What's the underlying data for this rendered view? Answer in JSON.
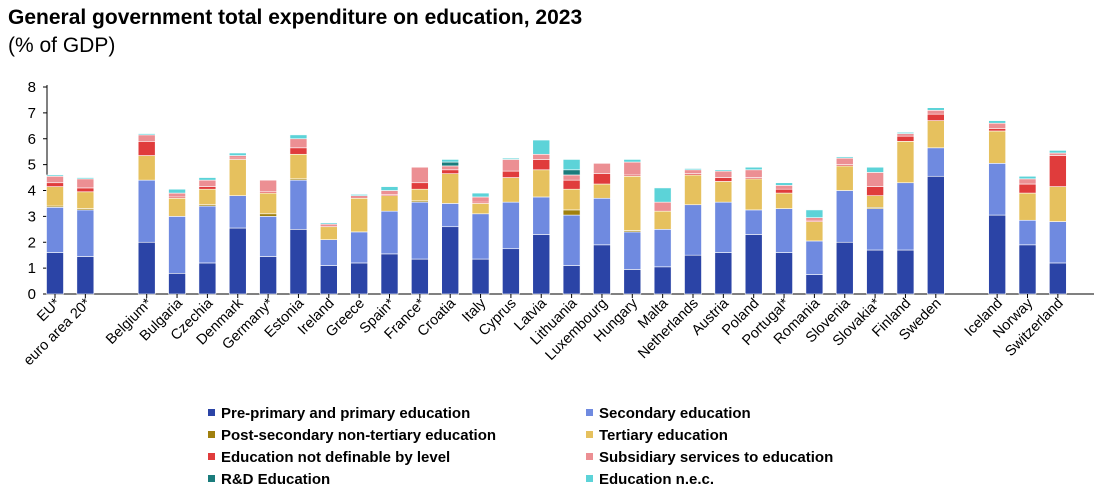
{
  "title": "General government total expenditure on education, 2023",
  "subtitle": "(% of GDP)",
  "chart_data": {
    "type": "bar",
    "stacked": true,
    "ylim": [
      0,
      8
    ],
    "yticks": [
      "0",
      "1",
      "2",
      "3",
      "4",
      "5",
      "6",
      "7",
      "8"
    ],
    "grid": false,
    "legend_position": "bottom",
    "categories": [
      "EU*",
      "euro area 20*",
      "Belgium*",
      "Bulgaria",
      "Czechia",
      "Denmark",
      "Germany*",
      "Estonia",
      "Ireland",
      "Greece",
      "Spain*",
      "France*",
      "Croatia",
      "Italy",
      "Cyprus",
      "Latvia",
      "Lithuania",
      "Luxembourg",
      "Hungary",
      "Malta",
      "Netherlands",
      "Austria",
      "Poland",
      "Portugal*",
      "Romania",
      "Slovenia",
      "Slovakia*",
      "Finland",
      "Sweden",
      "Iceland",
      "Norway",
      "Switzerland"
    ],
    "groups": [
      [
        0,
        1
      ],
      [
        2,
        28
      ],
      [
        29,
        31
      ]
    ],
    "series": [
      {
        "name": "Pre-primary and primary education",
        "color": "#2b44a6",
        "values": [
          1.6,
          1.45,
          2.0,
          0.8,
          1.2,
          2.55,
          1.45,
          2.5,
          1.1,
          1.2,
          1.55,
          1.35,
          2.6,
          1.35,
          1.75,
          2.3,
          1.1,
          1.9,
          0.95,
          1.05,
          1.5,
          1.6,
          2.3,
          1.6,
          0.75,
          2.0,
          1.7,
          1.7,
          4.55,
          3.05,
          1.9,
          1.2
        ]
      },
      {
        "name": "Secondary education",
        "color": "#6f8ae0",
        "values": [
          1.75,
          1.8,
          2.4,
          2.2,
          2.2,
          1.25,
          1.55,
          1.9,
          1.0,
          1.2,
          1.65,
          2.2,
          0.9,
          1.75,
          1.8,
          1.45,
          1.95,
          1.8,
          1.45,
          1.45,
          1.95,
          1.95,
          0.95,
          1.7,
          1.3,
          2.0,
          1.6,
          2.6,
          1.1,
          2.0,
          0.95,
          1.6
        ]
      },
      {
        "name": "Post-secondary non-tertiary education",
        "color": "#a0800e",
        "values": [
          0.05,
          0.05,
          0.0,
          0.0,
          0.05,
          0.0,
          0.1,
          0.05,
          0.0,
          0.0,
          0.0,
          0.05,
          0.0,
          0.0,
          0.0,
          0.0,
          0.2,
          0.0,
          0.05,
          0.0,
          0.0,
          0.0,
          0.0,
          0.0,
          0.0,
          0.0,
          0.05,
          0.0,
          0.0,
          0.0,
          0.0,
          0.0
        ]
      },
      {
        "name": "Tertiary education",
        "color": "#e6c15e",
        "values": [
          0.75,
          0.65,
          0.95,
          0.7,
          0.6,
          1.4,
          0.8,
          0.95,
          0.5,
          1.3,
          0.6,
          0.45,
          1.15,
          0.4,
          0.95,
          1.05,
          0.8,
          0.55,
          2.1,
          0.7,
          1.15,
          0.8,
          1.2,
          0.6,
          0.75,
          0.95,
          0.45,
          1.6,
          1.05,
          1.25,
          1.05,
          1.35
        ]
      },
      {
        "name": "Education not definable by level",
        "color": "#e03c3c",
        "values": [
          0.15,
          0.15,
          0.55,
          0.05,
          0.1,
          0.05,
          0.05,
          0.25,
          0.0,
          0.0,
          0.05,
          0.25,
          0.15,
          0.05,
          0.25,
          0.4,
          0.35,
          0.4,
          0.05,
          0.0,
          0.05,
          0.15,
          0.05,
          0.15,
          0.05,
          0.05,
          0.35,
          0.2,
          0.25,
          0.1,
          0.35,
          1.2
        ]
      },
      {
        "name": "Subsidiary services to education",
        "color": "#ec8f93",
        "values": [
          0.25,
          0.35,
          0.25,
          0.15,
          0.25,
          0.1,
          0.45,
          0.35,
          0.1,
          0.1,
          0.15,
          0.6,
          0.15,
          0.2,
          0.45,
          0.2,
          0.2,
          0.4,
          0.5,
          0.35,
          0.15,
          0.25,
          0.3,
          0.15,
          0.1,
          0.25,
          0.55,
          0.1,
          0.15,
          0.2,
          0.2,
          0.1
        ]
      },
      {
        "name": "R&D Education",
        "color": "#1a7c7c",
        "values": [
          0.0,
          0.0,
          0.0,
          0.0,
          0.0,
          0.0,
          0.0,
          0.0,
          0.0,
          0.0,
          0.0,
          0.0,
          0.15,
          0.0,
          0.0,
          0.0,
          0.2,
          0.0,
          0.0,
          0.0,
          0.0,
          0.0,
          0.0,
          0.0,
          0.0,
          0.0,
          0.0,
          0.0,
          0.0,
          0.0,
          0.0,
          0.0
        ]
      },
      {
        "name": "Education n.e.c.",
        "color": "#5cd3d8",
        "values": [
          0.05,
          0.05,
          0.05,
          0.15,
          0.1,
          0.1,
          0.0,
          0.15,
          0.05,
          0.05,
          0.15,
          0.0,
          0.1,
          0.15,
          0.05,
          0.55,
          0.4,
          0.0,
          0.1,
          0.55,
          0.05,
          0.05,
          0.1,
          0.1,
          0.3,
          0.05,
          0.2,
          0.05,
          0.1,
          0.1,
          0.1,
          0.1
        ]
      }
    ]
  }
}
